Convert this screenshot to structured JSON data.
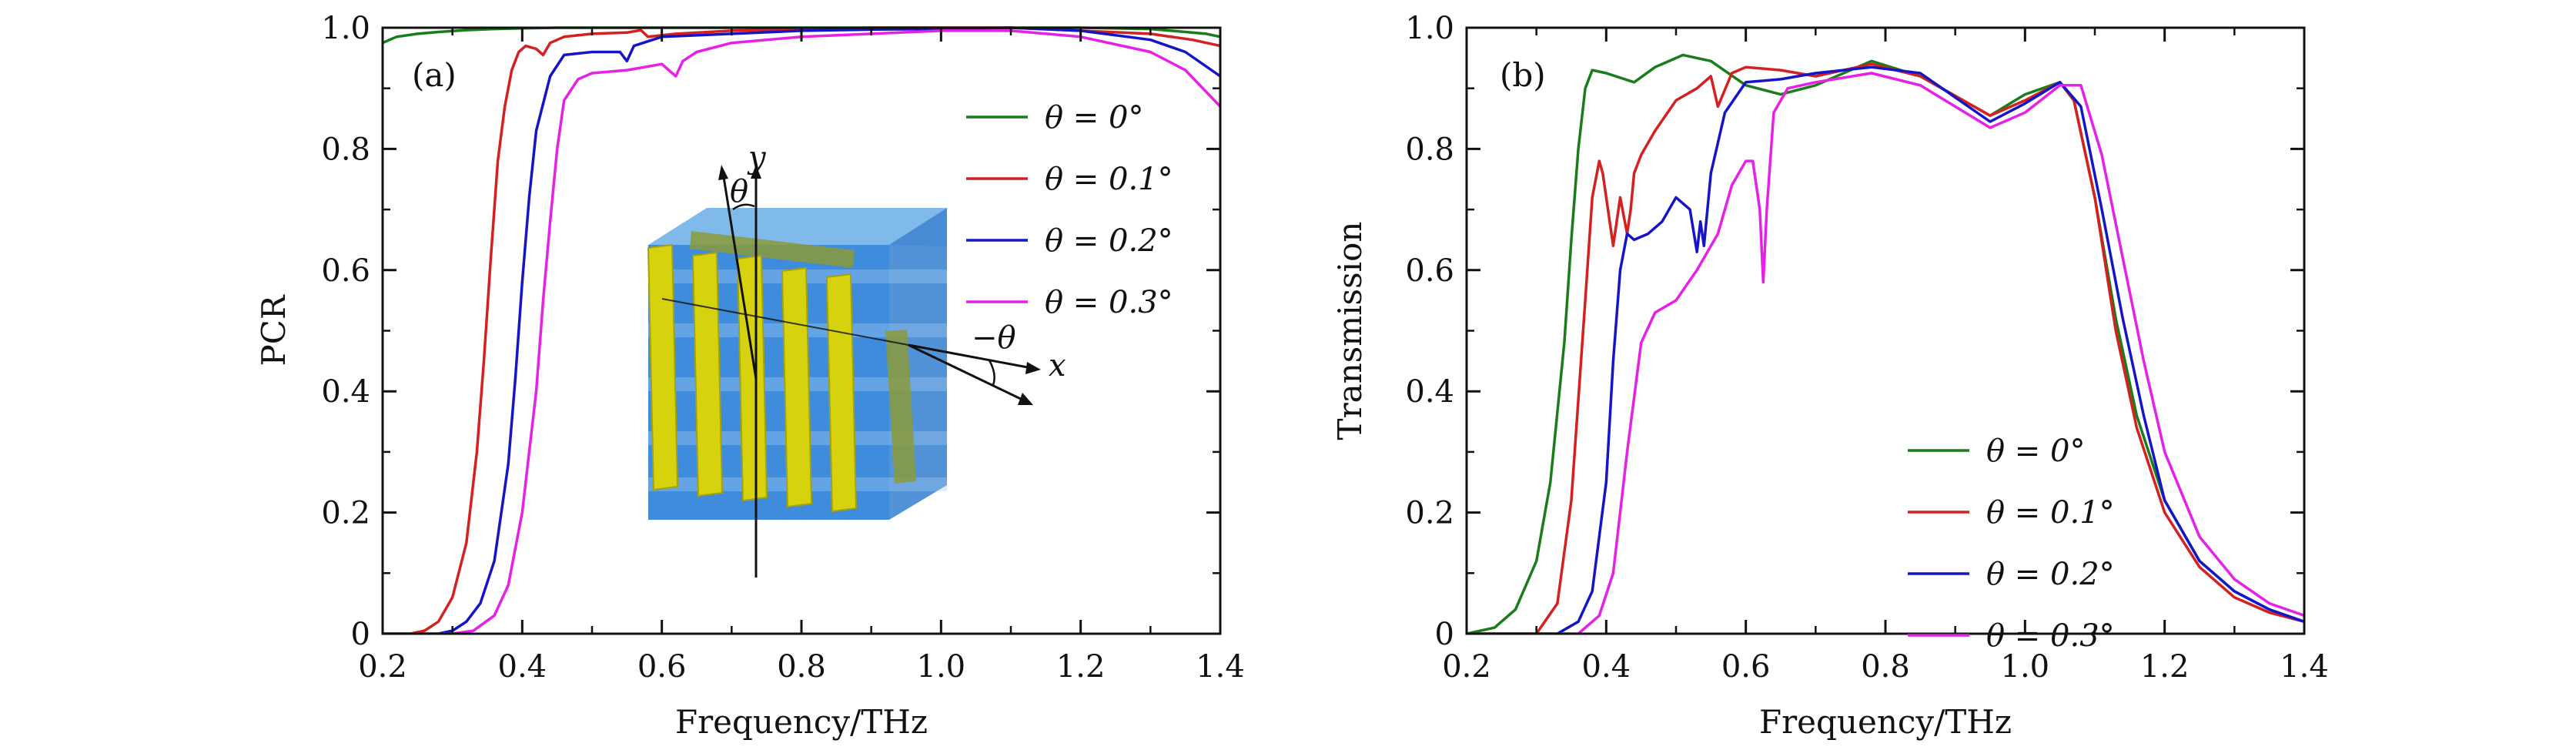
{
  "chart_data": [
    {
      "type": "line",
      "panel_label": "(a)",
      "xlabel": "Frequency/THz",
      "ylabel": "PCR",
      "xlim": [
        0.2,
        1.4
      ],
      "ylim": [
        0,
        1.0
      ],
      "xticks": [
        "0.2",
        "0.4",
        "0.6",
        "0.8",
        "1.0",
        "1.2",
        "1.4"
      ],
      "yticks": [
        "0",
        "0.2",
        "0.4",
        "0.6",
        "0.8",
        "1.0"
      ],
      "legend_position": "upper-right",
      "inset_labels": {
        "y_axis": "y",
        "x_axis": "x",
        "angle": "θ",
        "neg_angle": "−θ"
      },
      "series": [
        {
          "name": "θ = 0°",
          "color": "#1a7d1a",
          "x": [
            0.2,
            0.22,
            0.25,
            0.28,
            0.32,
            0.36,
            0.4,
            0.45,
            0.5,
            0.6,
            0.8,
            1.0,
            1.2,
            1.3,
            1.38,
            1.4
          ],
          "y": [
            0.975,
            0.985,
            0.99,
            0.993,
            0.996,
            0.998,
            0.999,
            1.0,
            1.0,
            1.0,
            1.0,
            1.0,
            1.0,
            0.998,
            0.99,
            0.985
          ]
        },
        {
          "name": "θ = 0.1°",
          "color": "#d42020",
          "x": [
            0.2,
            0.24,
            0.26,
            0.28,
            0.3,
            0.32,
            0.335,
            0.345,
            0.355,
            0.365,
            0.375,
            0.385,
            0.395,
            0.405,
            0.42,
            0.43,
            0.44,
            0.46,
            0.5,
            0.55,
            0.57,
            0.58,
            0.62,
            0.7,
            0.8,
            0.9,
            1.0,
            1.1,
            1.2,
            1.3,
            1.36,
            1.4
          ],
          "y": [
            0.0,
            0.0,
            0.005,
            0.02,
            0.06,
            0.15,
            0.3,
            0.45,
            0.62,
            0.78,
            0.87,
            0.93,
            0.96,
            0.97,
            0.965,
            0.955,
            0.975,
            0.985,
            0.99,
            0.992,
            0.996,
            0.985,
            0.99,
            0.995,
            0.998,
            1.0,
            1.0,
            1.0,
            0.995,
            0.99,
            0.98,
            0.97
          ]
        },
        {
          "name": "θ = 0.2°",
          "color": "#1515c8",
          "x": [
            0.2,
            0.28,
            0.3,
            0.32,
            0.34,
            0.36,
            0.38,
            0.39,
            0.4,
            0.41,
            0.42,
            0.44,
            0.46,
            0.5,
            0.54,
            0.55,
            0.56,
            0.6,
            0.7,
            0.8,
            0.9,
            1.0,
            1.1,
            1.2,
            1.3,
            1.35,
            1.4
          ],
          "y": [
            0.0,
            0.0,
            0.005,
            0.02,
            0.05,
            0.12,
            0.28,
            0.42,
            0.58,
            0.72,
            0.83,
            0.92,
            0.955,
            0.96,
            0.96,
            0.945,
            0.97,
            0.985,
            0.99,
            0.995,
            0.997,
            0.998,
            1.0,
            0.995,
            0.98,
            0.96,
            0.92
          ]
        },
        {
          "name": "θ = 0.3°",
          "color": "#e620e6",
          "x": [
            0.2,
            0.3,
            0.33,
            0.36,
            0.38,
            0.4,
            0.42,
            0.43,
            0.44,
            0.45,
            0.46,
            0.48,
            0.5,
            0.55,
            0.6,
            0.62,
            0.63,
            0.65,
            0.7,
            0.8,
            0.9,
            1.0,
            1.1,
            1.2,
            1.3,
            1.35,
            1.4
          ],
          "y": [
            0.0,
            0.0,
            0.005,
            0.03,
            0.08,
            0.2,
            0.4,
            0.55,
            0.68,
            0.8,
            0.88,
            0.915,
            0.925,
            0.93,
            0.94,
            0.92,
            0.945,
            0.96,
            0.975,
            0.985,
            0.99,
            0.995,
            0.995,
            0.985,
            0.96,
            0.93,
            0.87
          ]
        }
      ]
    },
    {
      "type": "line",
      "panel_label": "(b)",
      "xlabel": "Frequency/THz",
      "ylabel": "Transmission",
      "xlim": [
        0.2,
        1.4
      ],
      "ylim": [
        0,
        1.0
      ],
      "xticks": [
        "0.2",
        "0.4",
        "0.6",
        "0.8",
        "1.0",
        "1.2",
        "1.4"
      ],
      "yticks": [
        "0",
        "0.2",
        "0.4",
        "0.6",
        "0.8",
        "1.0"
      ],
      "legend_position": "lower-right",
      "series": [
        {
          "name": "θ = 0°",
          "color": "#1a7d1a",
          "x": [
            0.2,
            0.24,
            0.27,
            0.3,
            0.32,
            0.34,
            0.35,
            0.36,
            0.37,
            0.38,
            0.4,
            0.44,
            0.47,
            0.51,
            0.55,
            0.6,
            0.65,
            0.7,
            0.78,
            0.85,
            0.95,
            1.0,
            1.05,
            1.07,
            1.1,
            1.13,
            1.16,
            1.2,
            1.25,
            1.3,
            1.35,
            1.4
          ],
          "y": [
            0.0,
            0.01,
            0.04,
            0.12,
            0.25,
            0.48,
            0.65,
            0.8,
            0.9,
            0.93,
            0.925,
            0.91,
            0.935,
            0.955,
            0.945,
            0.905,
            0.89,
            0.905,
            0.945,
            0.92,
            0.855,
            0.89,
            0.91,
            0.88,
            0.72,
            0.52,
            0.36,
            0.22,
            0.12,
            0.07,
            0.04,
            0.02
          ]
        },
        {
          "name": "θ = 0.1°",
          "color": "#d42020",
          "x": [
            0.2,
            0.3,
            0.33,
            0.35,
            0.37,
            0.38,
            0.39,
            0.395,
            0.41,
            0.42,
            0.43,
            0.435,
            0.44,
            0.45,
            0.47,
            0.5,
            0.53,
            0.55,
            0.56,
            0.58,
            0.6,
            0.65,
            0.7,
            0.78,
            0.85,
            0.95,
            1.0,
            1.05,
            1.07,
            1.1,
            1.13,
            1.16,
            1.2,
            1.25,
            1.3,
            1.35,
            1.4
          ],
          "y": [
            0.0,
            0.0,
            0.05,
            0.22,
            0.55,
            0.72,
            0.78,
            0.76,
            0.64,
            0.72,
            0.66,
            0.7,
            0.76,
            0.79,
            0.83,
            0.88,
            0.9,
            0.92,
            0.87,
            0.925,
            0.935,
            0.93,
            0.92,
            0.94,
            0.92,
            0.855,
            0.88,
            0.91,
            0.88,
            0.72,
            0.5,
            0.34,
            0.2,
            0.11,
            0.06,
            0.035,
            0.02
          ]
        },
        {
          "name": "θ = 0.2°",
          "color": "#1515c8",
          "x": [
            0.2,
            0.33,
            0.36,
            0.38,
            0.4,
            0.41,
            0.42,
            0.43,
            0.44,
            0.46,
            0.48,
            0.5,
            0.52,
            0.53,
            0.535,
            0.54,
            0.55,
            0.57,
            0.6,
            0.65,
            0.7,
            0.78,
            0.85,
            0.95,
            1.0,
            1.05,
            1.08,
            1.11,
            1.14,
            1.17,
            1.2,
            1.25,
            1.3,
            1.35,
            1.4
          ],
          "y": [
            0.0,
            0.0,
            0.02,
            0.07,
            0.25,
            0.45,
            0.6,
            0.66,
            0.65,
            0.66,
            0.68,
            0.72,
            0.7,
            0.63,
            0.68,
            0.64,
            0.76,
            0.86,
            0.91,
            0.915,
            0.925,
            0.935,
            0.925,
            0.845,
            0.875,
            0.91,
            0.87,
            0.7,
            0.52,
            0.36,
            0.22,
            0.12,
            0.07,
            0.04,
            0.02
          ]
        },
        {
          "name": "θ = 0.3°",
          "color": "#e620e6",
          "x": [
            0.2,
            0.36,
            0.39,
            0.41,
            0.43,
            0.45,
            0.47,
            0.5,
            0.53,
            0.56,
            0.58,
            0.6,
            0.61,
            0.62,
            0.625,
            0.63,
            0.64,
            0.66,
            0.7,
            0.78,
            0.85,
            0.95,
            1.0,
            1.05,
            1.08,
            1.11,
            1.14,
            1.17,
            1.2,
            1.25,
            1.3,
            1.35,
            1.4
          ],
          "y": [
            0.0,
            0.0,
            0.03,
            0.1,
            0.3,
            0.48,
            0.53,
            0.55,
            0.6,
            0.66,
            0.74,
            0.78,
            0.78,
            0.7,
            0.58,
            0.7,
            0.86,
            0.9,
            0.91,
            0.925,
            0.905,
            0.835,
            0.86,
            0.905,
            0.905,
            0.79,
            0.62,
            0.45,
            0.3,
            0.16,
            0.09,
            0.05,
            0.03
          ]
        }
      ]
    }
  ]
}
